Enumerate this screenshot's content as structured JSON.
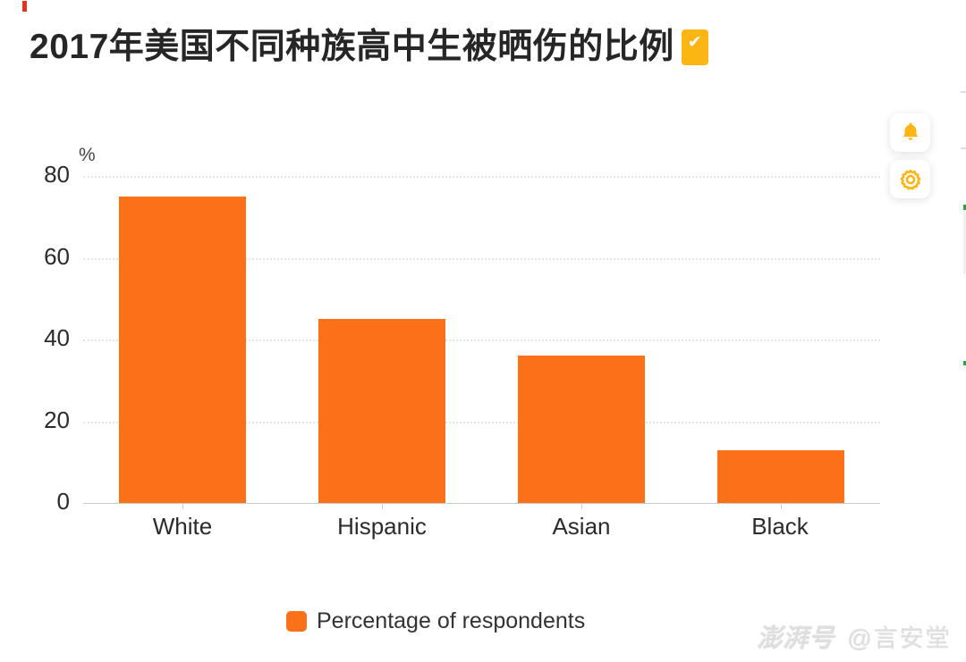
{
  "title": {
    "text": "2017年美国不同种族高中生被晒伤的比例",
    "badge_check": "✔",
    "badge_color": "#fcb614"
  },
  "chart_data": {
    "type": "bar",
    "categories": [
      "White",
      "Hispanic",
      "Asian",
      "Black"
    ],
    "values": [
      75,
      45,
      36,
      13
    ],
    "series": [
      {
        "name": "Percentage of respondents",
        "values": [
          75,
          45,
          36,
          13
        ]
      }
    ],
    "title": "2017年美国不同种族高中生被晒伤的比例",
    "xlabel": "",
    "ylabel": "%",
    "unit_label": "%",
    "y_ticks": [
      0,
      20,
      40,
      60,
      80
    ],
    "ylim": [
      0,
      80
    ],
    "grid": "horizontal dotted",
    "bar_color": "#fb7118",
    "legend_position": "bottom-center"
  },
  "legend": {
    "label": "Percentage of respondents",
    "swatch_color": "#fb7118"
  },
  "toolbar": {
    "bell_icon": "notification-bell",
    "gear_icon": "settings-gear",
    "icon_color": "#fdb515"
  },
  "watermark": {
    "brand": "澎湃号",
    "handle": "@言安堂"
  }
}
